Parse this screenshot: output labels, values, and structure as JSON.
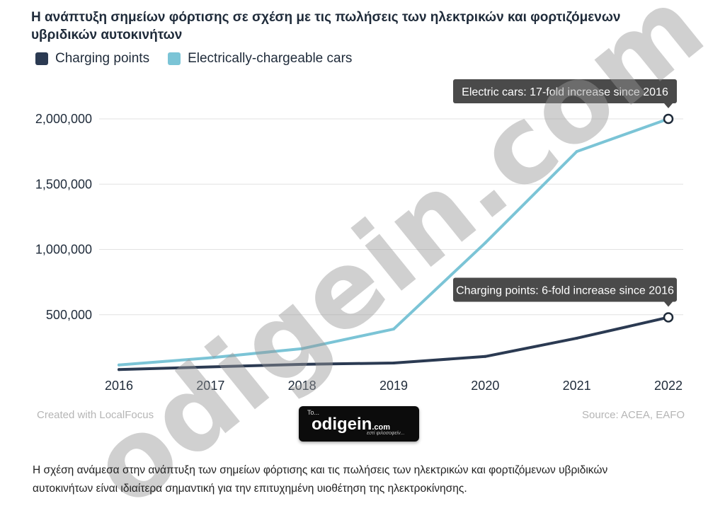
{
  "chart_data": {
    "type": "line",
    "title": "Η ανάπτυξη σημείων φόρτισης σε σχέση με τις πωλήσεις των ηλεκτρικών και φορτιζόμενων υβριδικών αυτοκινήτων",
    "categories": [
      "2016",
      "2017",
      "2018",
      "2019",
      "2020",
      "2021",
      "2022"
    ],
    "series": [
      {
        "name": "Charging points",
        "color": "#2b3a52",
        "values": [
          80000,
          100000,
          120000,
          130000,
          180000,
          320000,
          480000
        ]
      },
      {
        "name": "Electrically-chargeable cars",
        "color": "#7bc4d6",
        "values": [
          115000,
          170000,
          240000,
          390000,
          1050000,
          1750000,
          2000000
        ]
      }
    ],
    "ylim": [
      0,
      2000000
    ],
    "yticks": [
      500000,
      1000000,
      1500000,
      2000000
    ],
    "ytick_labels": [
      "500,000",
      "1,000,000",
      "1,500,000",
      "2,000,000"
    ],
    "grid": true,
    "legend_position": "top-left",
    "annotations": [
      {
        "series": 1,
        "point": 6,
        "text": "Electric cars: 17-fold increase since 2016"
      },
      {
        "series": 0,
        "point": 6,
        "text": "Charging points: 6-fold increase since 2016"
      }
    ]
  },
  "credits": {
    "left": "Created with LocalFocus",
    "right": "Source:  ACEA, EAFO"
  },
  "logo": {
    "small_text": "To...",
    "name": "odigein",
    "domain": ".com",
    "tagline": "εστί φιλοσοφείν..."
  },
  "watermark": "odigein.com",
  "caption": "Η σχέση ανάμεσα στην ανάπτυξη των σημείων φόρτισης και τις πωλήσεις των ηλεκτρικών και φορτιζόμενων υβριδικών αυτοκινήτων είναι ιδιαίτερα σημαντική για την επιτυχημένη υιοθέτηση της ηλεκτροκίνησης."
}
